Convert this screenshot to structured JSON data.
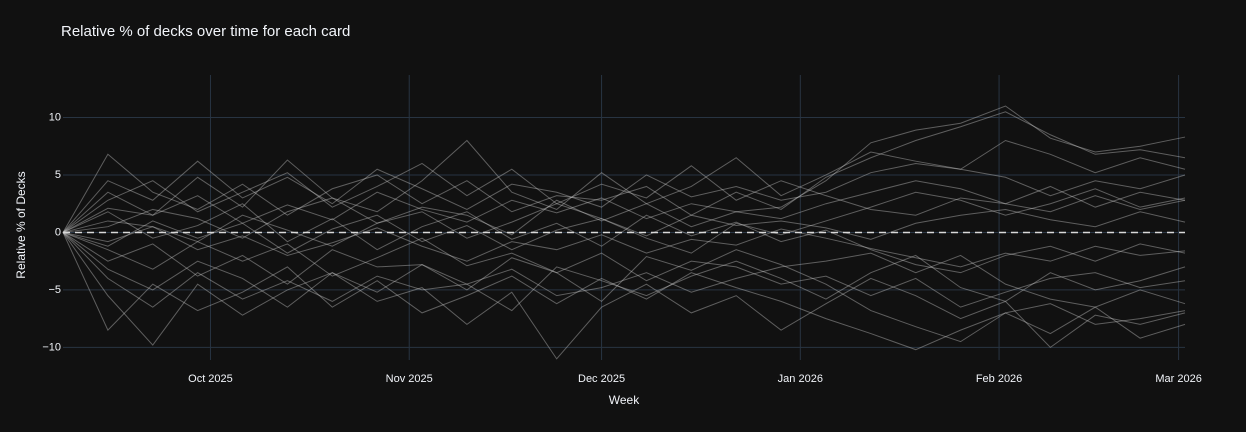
{
  "chart_data": {
    "type": "line",
    "title": "Relative  % of decks over time for each card",
    "x_label": "Week",
    "y_label": "Relative % of Decks",
    "x": [
      0,
      1,
      2,
      3,
      4,
      5,
      6,
      7,
      8,
      9,
      10,
      11,
      12,
      13,
      14,
      15,
      16,
      17,
      18,
      19,
      20,
      21,
      22,
      23,
      24,
      25
    ],
    "xlim": [
      0,
      25
    ],
    "xticks": [
      {
        "value": 3.2857,
        "label": "Oct 2025"
      },
      {
        "value": 7.7143,
        "label": "Nov 2025"
      },
      {
        "value": 12,
        "label": "Dec 2025"
      },
      {
        "value": 16.4286,
        "label": "Jan 2026"
      },
      {
        "value": 20.8571,
        "label": "Feb 2026"
      },
      {
        "value": 24.8571,
        "label": "Mar 2026"
      }
    ],
    "ylim": [
      -11.1,
      13.7
    ],
    "yticks": [
      {
        "value": 10,
        "label": "10"
      },
      {
        "value": 5,
        "label": "5"
      },
      {
        "value": 0,
        "label": "0"
      },
      {
        "value": -5,
        "label": "−5"
      },
      {
        "value": -10,
        "label": "−10"
      }
    ],
    "grid": true,
    "reference_line": {
      "y": 0,
      "dashed": true,
      "color": "#d9d9d9"
    },
    "color": "rgba(210,210,210,0.4)",
    "series": [
      {
        "values": [
          0,
          2.1,
          1.5,
          3.2,
          0.8,
          2.4,
          1.1,
          3.5,
          2.0,
          0.9,
          2.8,
          1.7,
          3.0,
          1.2,
          2.5,
          1.8,
          2.2,
          4.5,
          7.8,
          8.9,
          9.5,
          11.0,
          8.2,
          7.0,
          7.5,
          8.3
        ]
      },
      {
        "values": [
          0,
          -1.5,
          -3.2,
          -0.8,
          -2.5,
          -1.0,
          -3.8,
          -2.2,
          -0.5,
          -2.9,
          -1.8,
          -3.5,
          -6.0,
          -2.1,
          -3.3,
          -1.5,
          -2.8,
          -4.5,
          -6.8,
          -8.2,
          -9.5,
          -7.0,
          -8.8,
          -6.5,
          -9.2,
          -8.0
        ]
      },
      {
        "values": [
          0,
          4.5,
          2.8,
          6.2,
          3.0,
          4.8,
          2.5,
          5.5,
          3.8,
          2.0,
          4.2,
          3.5,
          2.2,
          5.0,
          3.1,
          4.0,
          2.8,
          3.5,
          5.2,
          6.0,
          5.5,
          4.8,
          3.2,
          4.5,
          3.8,
          5.0
        ]
      },
      {
        "values": [
          0,
          -4.0,
          -6.5,
          -3.5,
          -5.8,
          -4.2,
          -6.0,
          -3.8,
          -5.0,
          -4.5,
          -3.2,
          -5.5,
          -4.8,
          -3.5,
          -5.2,
          -4.0,
          -3.0,
          -2.5,
          -1.8,
          -3.5,
          -2.0,
          -4.5,
          -5.8,
          -6.5,
          -5.0,
          -6.2
        ]
      },
      {
        "values": [
          0,
          1.0,
          0.5,
          -0.8,
          1.5,
          0.2,
          -1.2,
          0.8,
          1.8,
          -0.5,
          0.9,
          2.5,
          1.2,
          -0.3,
          1.5,
          0.6,
          1.0,
          0.4,
          -0.6,
          0.8,
          1.5,
          2.0,
          1.1,
          0.5,
          1.8,
          0.9
        ]
      },
      {
        "values": [
          0,
          -0.8,
          0.5,
          -1.5,
          -0.3,
          -2.0,
          -0.9,
          0.4,
          -1.2,
          -2.5,
          -0.8,
          -1.5,
          -0.2,
          -1.8,
          -0.6,
          -1.1,
          0.3,
          -0.5,
          -1.4,
          -2.2,
          -3.0,
          -1.8,
          -2.5,
          -1.2,
          -2.0,
          -1.6
        ]
      },
      {
        "values": [
          0,
          6.8,
          3.5,
          2.0,
          4.2,
          1.5,
          3.8,
          5.0,
          2.5,
          4.5,
          1.8,
          3.2,
          2.8,
          4.0,
          1.5,
          3.5,
          2.0,
          4.8,
          6.5,
          8.0,
          9.2,
          10.5,
          8.5,
          6.8,
          7.2,
          6.5
        ]
      },
      {
        "values": [
          0,
          -8.5,
          -4.5,
          -6.8,
          -5.2,
          -3.0,
          -6.5,
          -4.2,
          -7.0,
          -5.5,
          -3.8,
          -6.2,
          -4.0,
          -5.8,
          -3.5,
          -4.8,
          -6.0,
          -7.5,
          -8.8,
          -10.2,
          -8.5,
          -7.0,
          -6.2,
          -8.0,
          -7.5,
          -6.8
        ]
      },
      {
        "values": [
          0,
          2.8,
          4.5,
          1.8,
          3.5,
          5.2,
          2.2,
          4.0,
          6.0,
          3.2,
          5.5,
          2.5,
          4.2,
          3.0,
          5.8,
          2.8,
          4.5,
          3.2,
          2.0,
          1.5,
          3.0,
          2.5,
          4.0,
          2.2,
          3.5,
          2.8
        ]
      },
      {
        "values": [
          0,
          -2.5,
          -1.0,
          -3.8,
          -2.0,
          -4.5,
          -1.5,
          -3.0,
          -2.8,
          -5.0,
          -2.2,
          -3.5,
          -1.8,
          -4.2,
          -2.5,
          -3.0,
          -4.5,
          -3.8,
          -5.5,
          -4.0,
          -6.5,
          -5.2,
          -4.0,
          -3.5,
          -4.8,
          -4.2
        ]
      },
      {
        "values": [
          0,
          0.5,
          2.0,
          1.2,
          -0.5,
          1.8,
          3.0,
          0.8,
          2.2,
          1.5,
          -0.2,
          2.8,
          1.0,
          2.5,
          0.5,
          1.8,
          1.2,
          2.5,
          3.5,
          4.5,
          3.8,
          2.5,
          1.8,
          3.2,
          2.0,
          2.8
        ]
      },
      {
        "values": [
          0,
          -3.2,
          -5.0,
          -2.5,
          -4.0,
          -6.5,
          -3.5,
          -5.2,
          -2.8,
          -4.5,
          -6.8,
          -3.0,
          -4.2,
          -5.5,
          -3.8,
          -2.5,
          -4.0,
          -5.8,
          -3.5,
          -2.0,
          -4.8,
          -6.0,
          -3.5,
          -5.0,
          -4.2,
          -3.0
        ]
      },
      {
        "values": [
          0,
          3.5,
          1.5,
          4.8,
          2.2,
          6.3,
          3.0,
          1.8,
          4.5,
          8.0,
          3.5,
          2.0,
          5.2,
          2.5,
          4.0,
          6.5,
          3.2,
          5.0,
          7.0,
          6.2,
          5.5,
          8.0,
          6.8,
          5.2,
          6.5,
          5.5
        ]
      },
      {
        "values": [
          0,
          -5.5,
          -9.8,
          -4.5,
          -7.2,
          -5.0,
          -3.5,
          -6.0,
          -4.8,
          -8.0,
          -5.2,
          -11.0,
          -6.5,
          -4.5,
          -7.0,
          -5.5,
          -8.5,
          -6.2,
          -4.0,
          -5.5,
          -7.5,
          -6.0,
          -10.0,
          -7.2,
          -8.0,
          -7.0
        ]
      },
      {
        "values": [
          0,
          1.8,
          -0.5,
          0.6,
          2.5,
          -0.8,
          1.2,
          -1.5,
          0.5,
          1.8,
          -0.6,
          0.8,
          -1.2,
          1.5,
          -0.3,
          0.9,
          -0.8,
          0.2,
          -1.5,
          -2.8,
          -3.5,
          -2.0,
          -1.2,
          -2.5,
          -1.0,
          -1.8
        ]
      },
      {
        "values": [
          0,
          -1.2,
          1.0,
          -0.5,
          0.8,
          -1.8,
          0.3,
          1.5,
          -0.8,
          0.6,
          -1.5,
          0.2,
          1.2,
          -0.5,
          -1.8,
          0.8,
          -0.2,
          1.0,
          2.2,
          3.5,
          2.8,
          1.5,
          2.5,
          3.8,
          2.2,
          3.0
        ]
      }
    ]
  }
}
